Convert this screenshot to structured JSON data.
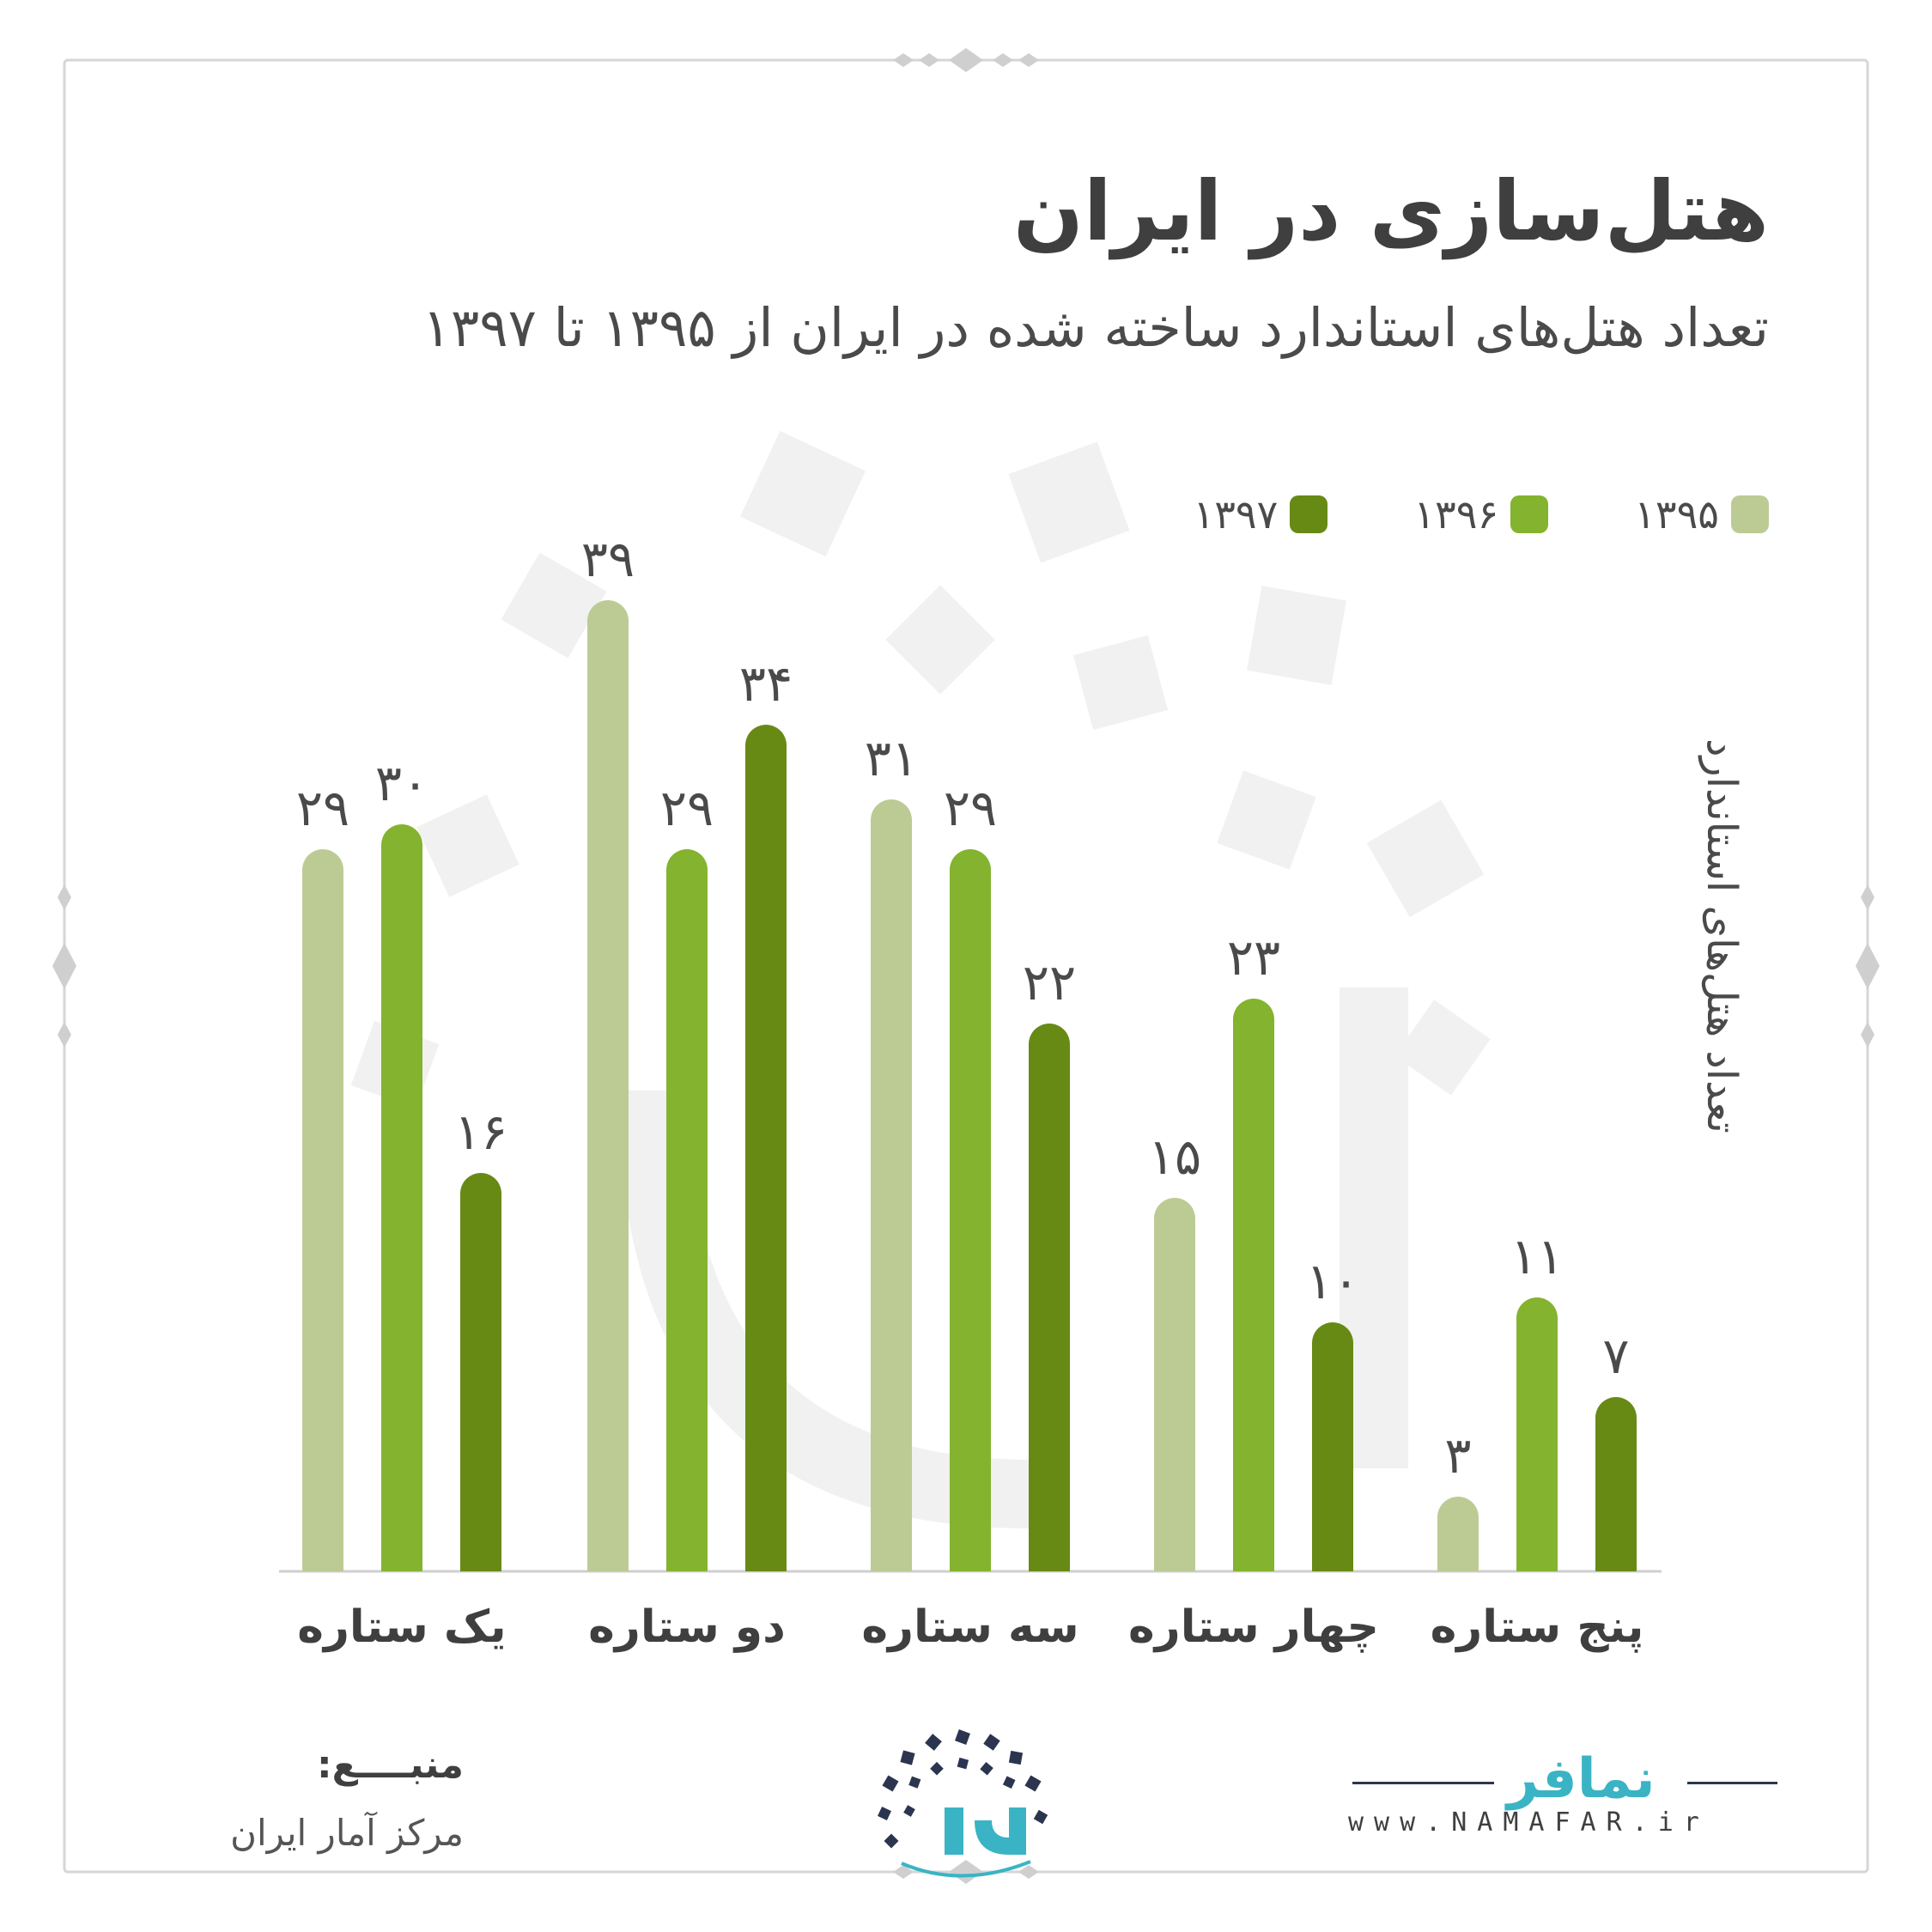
{
  "title": "هتل‌سازی در ایران",
  "subtitle": "تعداد هتل‌های استاندارد ساخته شده در ایران از ۱۳۹۵ تا ۱۳۹۷",
  "chart_data": {
    "type": "bar",
    "categories": [
      "یک ستاره",
      "دو ستاره",
      "سه ستاره",
      "چهار ستاره",
      "پنج ستاره"
    ],
    "series": [
      {
        "name": "۱۳۹۵",
        "color": "#bccb94",
        "values": [
          29,
          39,
          31,
          15,
          3
        ],
        "labels": [
          "۲۹",
          "۳۹",
          "۳۱",
          "۱۵",
          "۳"
        ]
      },
      {
        "name": "۱۳۹۶",
        "color": "#84b32f",
        "values": [
          30,
          29,
          29,
          23,
          11
        ],
        "labels": [
          "۳۰",
          "۲۹",
          "۲۹",
          "۲۳",
          "۱۱"
        ]
      },
      {
        "name": "۱۳۹۷",
        "color": "#678a15",
        "values": [
          16,
          34,
          22,
          10,
          7
        ],
        "labels": [
          "۱۶",
          "۳۴",
          "۲۲",
          "۱۰",
          "۷"
        ]
      }
    ],
    "ylabel": "تعداد هتل‌های استاندارد",
    "ylim": [
      0,
      40
    ],
    "grid": false,
    "legend_position": "top-right",
    "value_labels": true
  },
  "source": {
    "title": "منبــــع:",
    "name": "مرکز آمار ایران"
  },
  "brand": {
    "name": "نمافر",
    "url": "www.NAMAFAR.ir",
    "accent": "#3ab4c4",
    "dark": "#2c3550"
  }
}
